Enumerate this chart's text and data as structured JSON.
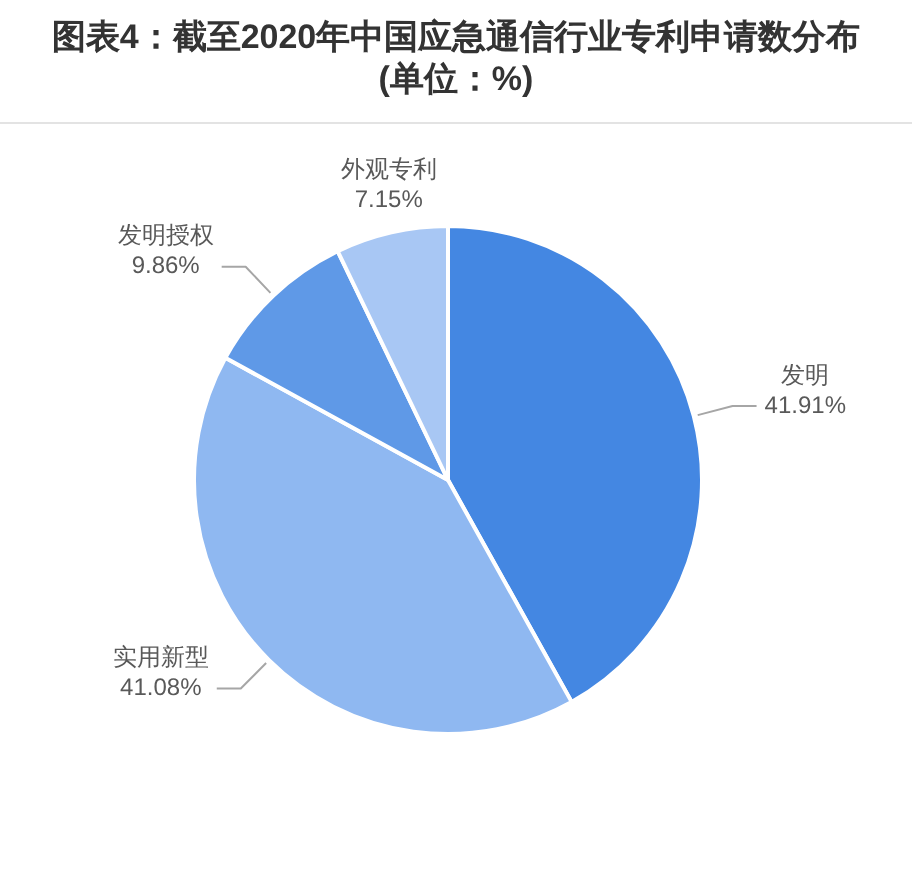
{
  "chart_data": {
    "type": "pie",
    "title": "图表4：截至2020年中国应急通信行业专利申请数分布 (单位：%)",
    "categories": [
      "发明",
      "实用新型",
      "发明授权",
      "外观专利"
    ],
    "values": [
      41.91,
      41.08,
      9.86,
      7.15
    ],
    "colors": [
      "#4487e2",
      "#8fb8f1",
      "#5f99e7",
      "#a8c7f4"
    ],
    "value_labels": [
      "41.91%",
      "41.08%",
      "9.86%",
      "7.15%"
    ]
  }
}
